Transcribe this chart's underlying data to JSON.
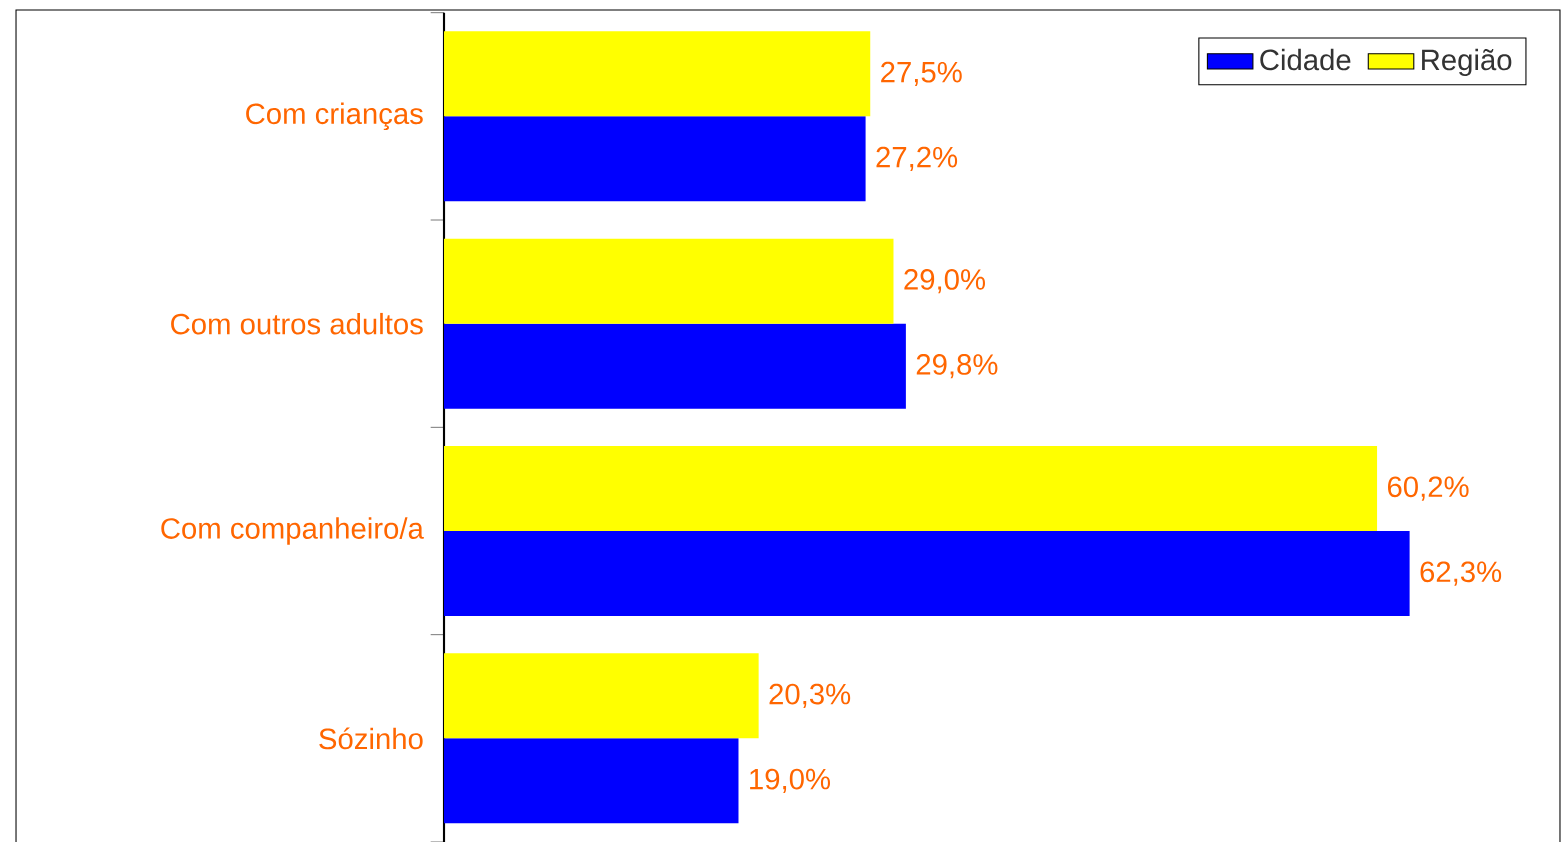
{
  "chart_data": {
    "type": "bar",
    "orientation": "horizontal",
    "categories": [
      "Com crianças",
      "Com outros adultos",
      "Com companheiro/a",
      "Sózinho"
    ],
    "series": [
      {
        "name": "Cidade",
        "color": "#0000ff",
        "values": [
          27.2,
          29.8,
          62.3,
          19.0
        ],
        "value_labels": [
          "27,2%",
          "29,8%",
          "62,3%",
          "19,0%"
        ]
      },
      {
        "name": "Região",
        "color": "#ffff00",
        "values": [
          27.5,
          29.0,
          60.2,
          20.3
        ],
        "value_labels": [
          "27,5%",
          "29,0%",
          "60,2%",
          "20,3%"
        ]
      }
    ],
    "xlim": [
      0,
      72
    ],
    "tick_labels": "y",
    "legend": "top right"
  }
}
